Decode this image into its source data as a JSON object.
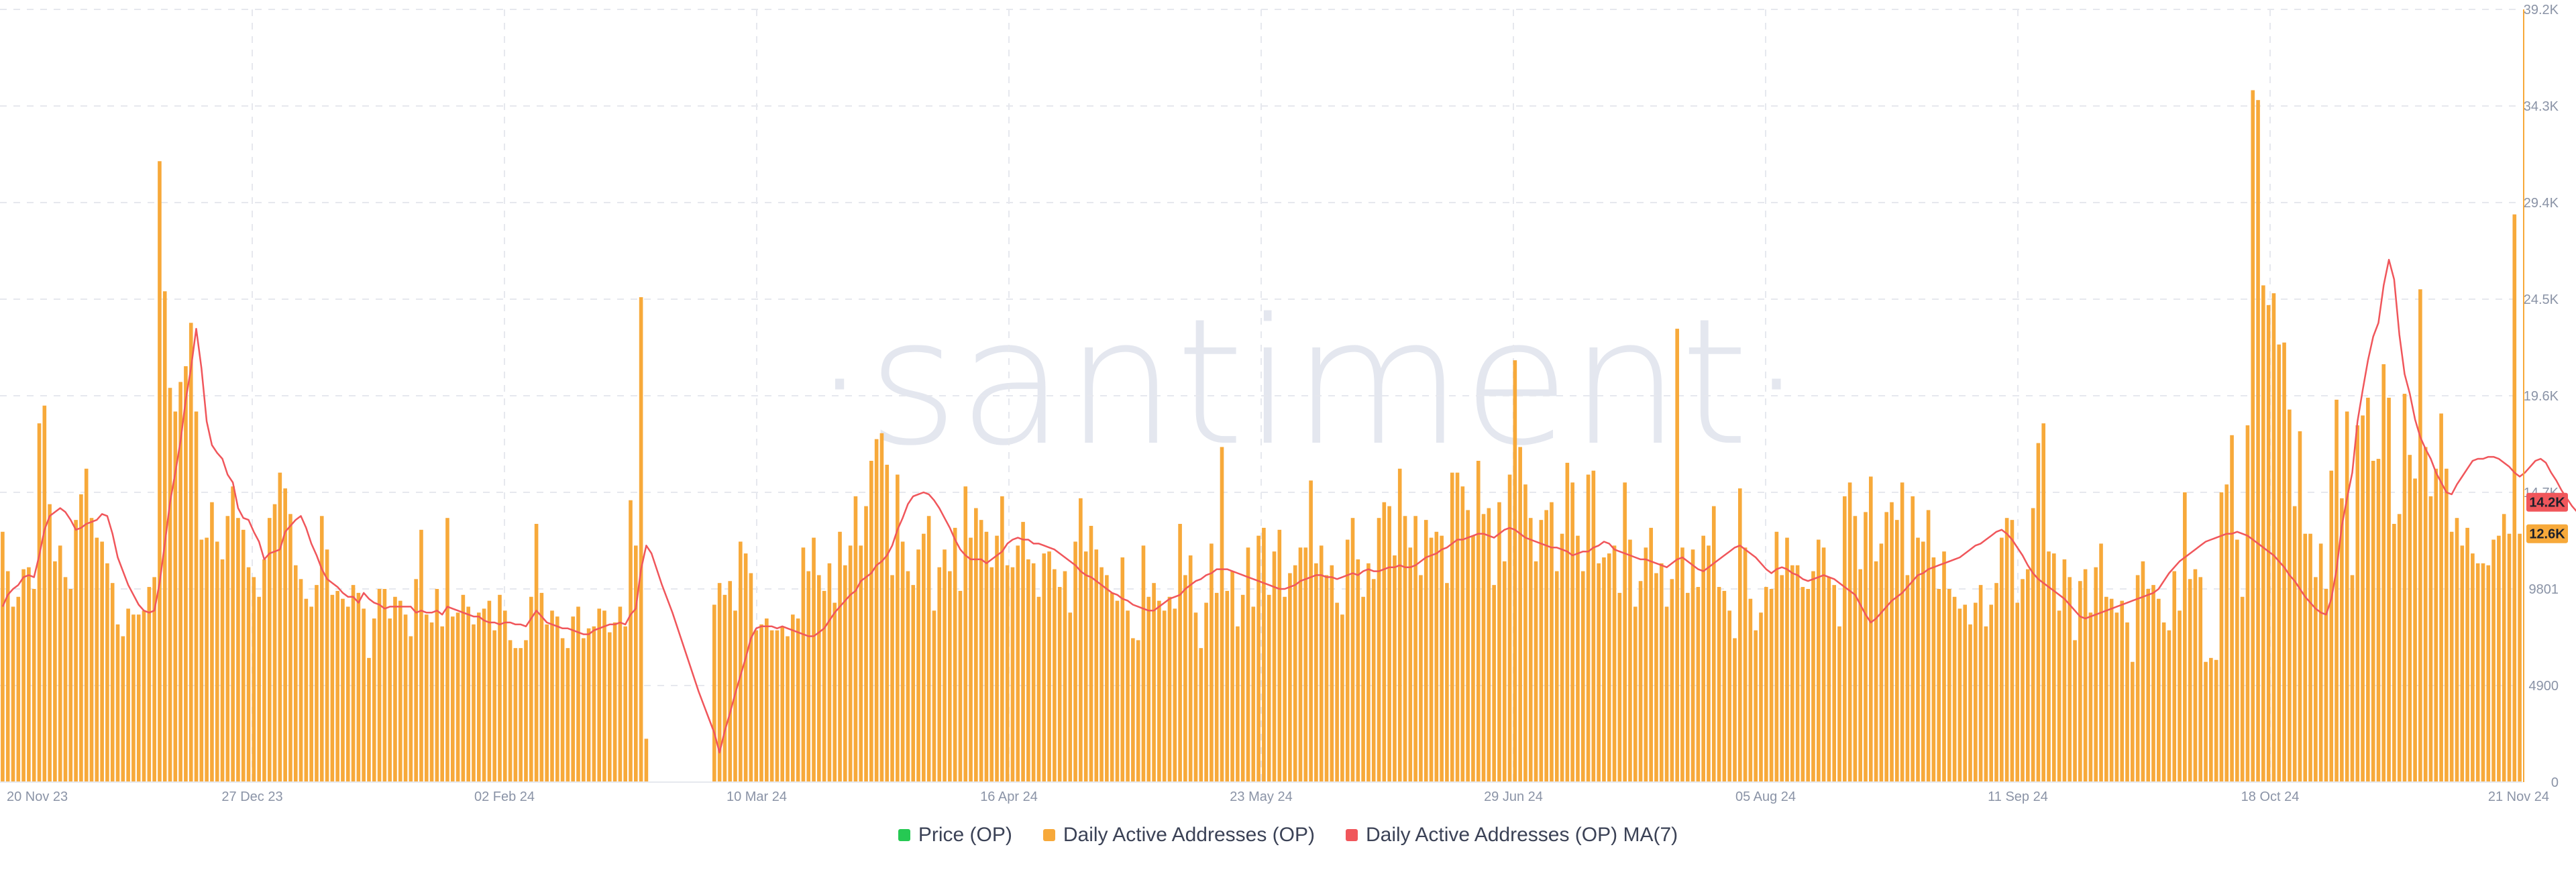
{
  "watermark": "·santiment·",
  "legend": [
    {
      "label": "Price (OP)",
      "color": "#26c953"
    },
    {
      "label": "Daily Active Addresses (OP)",
      "color": "#f7a93a"
    },
    {
      "label": "Daily Active Addresses (OP) MA(7)",
      "color": "#f0565b"
    }
  ],
  "chart_data": {
    "type": "bar",
    "x_start": "2023-11-20",
    "x_end": "2024-11-21",
    "x_tick_labels": [
      "20 Nov 23",
      "27 Dec 23",
      "02 Feb 24",
      "10 Mar 24",
      "16 Apr 24",
      "23 May 24",
      "29 Jun 24",
      "05 Aug 24",
      "11 Sep 24",
      "18 Oct 24",
      "21 Nov 24"
    ],
    "y_tick_labels": [
      "0",
      "4900",
      "9801",
      "14.7K",
      "19.6K",
      "24.5K",
      "29.4K",
      "34.3K",
      "39.2K"
    ],
    "ylim": [
      0,
      39200
    ],
    "grid": true,
    "legend_position": "bottom",
    "last_value_labels": [
      {
        "text": "14.2K",
        "value": 14200,
        "color": "#f0565b"
      },
      {
        "text": "12.6K",
        "value": 12600,
        "color": "#f7a93a"
      }
    ],
    "series": [
      {
        "name": "Daily Active Addresses (OP)",
        "color": "#f7a93a",
        "values": [
          12700,
          10700,
          8900,
          9400,
          10800,
          10900,
          9800,
          18200,
          19100,
          14100,
          11200,
          12000,
          10400,
          9800,
          13300,
          14600,
          15900,
          13400,
          12400,
          12200,
          11100,
          10100,
          8000,
          7400,
          8800,
          8500,
          8500,
          8700,
          9900,
          10400,
          31500,
          24900,
          20000,
          18800,
          20300,
          21100,
          23300,
          18800,
          12300,
          12400,
          14200,
          12200,
          11300,
          13500,
          15000,
          13400,
          12800,
          10900,
          10400,
          9400,
          11300,
          13400,
          14100,
          15700,
          14900,
          13600,
          11000,
          10300,
          9300,
          8900,
          10000,
          13500,
          11800,
          9500,
          9700,
          9300,
          8900,
          10000,
          9600,
          8800,
          6300,
          8300,
          9800,
          9800,
          8300,
          9400,
          9200,
          8500,
          7400,
          10300,
          12800,
          8500,
          8100,
          9800,
          7900,
          13400,
          8400,
          8600,
          9500,
          8900,
          8000,
          8600,
          8800,
          9200,
          7700,
          9500,
          8700,
          7200,
          6800,
          6800,
          7200,
          9400,
          13100,
          9600,
          8000,
          8700,
          8400,
          7300,
          6800,
          8400,
          8900,
          7300,
          7800,
          7900,
          8800,
          8700,
          7600,
          8100,
          8900,
          7900,
          14300,
          12000,
          24600,
          2200,
          0,
          0,
          0,
          0,
          0,
          0,
          0,
          0,
          0,
          0,
          0,
          0,
          9000,
          10100,
          9500,
          10200,
          8700,
          12200,
          11600,
          10600,
          7700,
          8000,
          8300,
          7700,
          7700,
          7900,
          7400,
          8500,
          8300,
          11900,
          10700,
          12400,
          10500,
          9700,
          11100,
          9100,
          12700,
          11000,
          12000,
          14500,
          12000,
          14000,
          16300,
          17400,
          17700,
          16100,
          10500,
          15600,
          12200,
          10700,
          10000,
          11800,
          12600,
          13500,
          8700,
          10900,
          11800,
          10700,
          12900,
          9700,
          15000,
          12400,
          13900,
          13300,
          12700,
          10900,
          12500,
          14500,
          11000,
          10900,
          12000,
          13200,
          11300,
          11100,
          9400,
          11600,
          11700,
          10800,
          9900,
          10700,
          8600,
          12200,
          14400,
          11700,
          13000,
          11800,
          10900,
          10500,
          9600,
          9200,
          11400,
          8700,
          7300,
          7200,
          12000,
          9400,
          10100,
          9200,
          8700,
          9400,
          8800,
          13100,
          10500,
          11500,
          8600,
          6800,
          9100,
          12100,
          9600,
          17000,
          9700,
          10700,
          7900,
          9500,
          11900,
          8900,
          12500,
          12900,
          9500,
          11700,
          12800,
          9400,
          10600,
          11000,
          11900,
          11900,
          15300,
          11100,
          12000,
          10500,
          11000,
          9100,
          8500,
          12300,
          13400,
          11300,
          9400,
          11100,
          10300,
          13400,
          14200,
          14000,
          11500,
          15900,
          13500,
          11900,
          13500,
          10500,
          13300,
          12400,
          12700,
          12500,
          10100,
          15700,
          15700,
          15000,
          13800,
          12500,
          16300,
          13600,
          13900,
          10000,
          14200,
          11200,
          15600,
          21400,
          17000,
          15100,
          13400,
          11200,
          13300,
          13800,
          14200,
          10700,
          12600,
          16200,
          15200,
          12500,
          10700,
          15600,
          15800,
          11100,
          11400,
          11600,
          12000,
          9600,
          15200,
          12300,
          8900,
          10200,
          11900,
          12900,
          10600,
          11100,
          8900,
          10300,
          23000,
          11900,
          9600,
          11800,
          9900,
          12500,
          12000,
          14000,
          9900,
          9700,
          8700,
          7300,
          14900,
          11900,
          9300,
          7700,
          8600,
          9900,
          9800,
          12700,
          10500,
          12400,
          11000,
          11000,
          9900,
          9800,
          10700,
          12300,
          11900,
          10400,
          10000,
          7900,
          14500,
          15200,
          13500,
          10800,
          13700,
          15500,
          11200,
          12100,
          13700,
          14200,
          13300,
          15200,
          10500,
          14500,
          12400,
          12200,
          13800,
          11400,
          9800,
          11700,
          9800,
          9400,
          8800,
          9000,
          8000,
          9100,
          10000,
          7900,
          9000,
          10100,
          12400,
          13400,
          13300,
          9100,
          10300,
          10800,
          13900,
          17200,
          18200,
          11700,
          11600,
          8700,
          11300,
          10400,
          7200,
          10200,
          10800,
          8600,
          10900,
          12100,
          9400,
          9300,
          8600,
          9200,
          8100,
          6100,
          10500,
          11200,
          9800,
          10000,
          9300,
          8100,
          7700,
          10700,
          8700,
          14700,
          10300,
          10800,
          10400,
          6100,
          6300,
          6200,
          14700,
          15100,
          17600,
          12300,
          9400,
          18100,
          35100,
          34600,
          25200,
          24200,
          24800,
          22200,
          22300,
          18900,
          14000,
          17800,
          12600,
          12600,
          10400,
          12100,
          9800,
          15800,
          19400,
          14400,
          18800,
          10500,
          18100,
          18600,
          19500,
          16300,
          16400,
          21200,
          19500,
          13100,
          13600,
          19700,
          16600,
          15400,
          25000,
          17000,
          14500,
          15900,
          18700,
          15900,
          12700,
          13400,
          12000,
          12900,
          11600,
          11100,
          11100,
          11000,
          12300,
          12500,
          13600,
          12600,
          28800,
          12600
        ]
      },
      {
        "name": "Daily Active Addresses (OP) MA(7)",
        "color": "#f0565b",
        "values": [
          8900,
          9500,
          9800,
          10000,
          10400,
          10500,
          10400,
          11500,
          12800,
          13500,
          13700,
          13900,
          13700,
          13300,
          12800,
          12900,
          13100,
          13200,
          13300,
          13600,
          13500,
          12600,
          11400,
          10700,
          10000,
          9500,
          9000,
          8700,
          8600,
          8700,
          10100,
          12100,
          14200,
          15700,
          17300,
          19400,
          21000,
          23000,
          21000,
          18300,
          17100,
          16700,
          16400,
          15600,
          15200,
          13900,
          13400,
          13300,
          12700,
          12200,
          11300,
          11600,
          11700,
          11800,
          12700,
          13000,
          13300,
          13500,
          12900,
          12100,
          11500,
          10800,
          10300,
          10100,
          9900,
          9600,
          9400,
          9400,
          9100,
          9600,
          9300,
          9100,
          9000,
          8800,
          8900,
          8900,
          8900,
          8900,
          8900,
          8600,
          8700,
          8600,
          8600,
          8700,
          8500,
          8900,
          8800,
          8700,
          8600,
          8500,
          8400,
          8400,
          8200,
          8100,
          8100,
          8000,
          8100,
          8100,
          8000,
          8000,
          7900,
          8300,
          8700,
          8400,
          8100,
          8000,
          7900,
          7800,
          7800,
          7700,
          7600,
          7500,
          7500,
          7700,
          7800,
          7900,
          8000,
          8000,
          8100,
          8000,
          8500,
          8800,
          10800,
          12000,
          11600,
          10800,
          10000,
          9300,
          8600,
          7800,
          7000,
          6200,
          5400,
          4600,
          3900,
          3200,
          2500,
          1500,
          2600,
          3500,
          4500,
          5400,
          6300,
          7300,
          7800,
          7900,
          7900,
          7900,
          7800,
          7900,
          7800,
          7700,
          7600,
          7500,
          7400,
          7400,
          7600,
          7800,
          8200,
          8600,
          8900,
          9200,
          9500,
          9700,
          10200,
          10400,
          10600,
          11000,
          11200,
          11500,
          12000,
          12800,
          13400,
          14100,
          14500,
          14600,
          14700,
          14600,
          14300,
          13900,
          13400,
          12900,
          12300,
          11800,
          11500,
          11300,
          11300,
          11300,
          11100,
          11300,
          11500,
          11700,
          12100,
          12300,
          12400,
          12300,
          12300,
          12100,
          12100,
          12000,
          11900,
          11800,
          11600,
          11400,
          11200,
          11000,
          10700,
          10500,
          10400,
          10200,
          10000,
          9800,
          9600,
          9500,
          9300,
          9200,
          9000,
          8900,
          8800,
          8700,
          8700,
          8900,
          9100,
          9300,
          9400,
          9500,
          9800,
          10000,
          10200,
          10300,
          10500,
          10600,
          10800,
          10800,
          10800,
          10700,
          10600,
          10500,
          10400,
          10300,
          10200,
          10100,
          10000,
          9900,
          9800,
          9800,
          9900,
          10000,
          10200,
          10300,
          10400,
          10500,
          10500,
          10400,
          10400,
          10300,
          10400,
          10500,
          10600,
          10500,
          10700,
          10800,
          10700,
          10700,
          10800,
          10900,
          10900,
          11000,
          10900,
          10900,
          11000,
          11200,
          11400,
          11500,
          11600,
          11800,
          11900,
          12100,
          12300,
          12300,
          12400,
          12500,
          12600,
          12600,
          12500,
          12400,
          12600,
          12800,
          12900,
          12800,
          12600,
          12400,
          12300,
          12200,
          12100,
          12000,
          11900,
          11900,
          11800,
          11700,
          11500,
          11600,
          11700,
          11700,
          11900,
          12000,
          12200,
          12100,
          11800,
          11700,
          11600,
          11500,
          11400,
          11300,
          11300,
          11200,
          11100,
          11000,
          10900,
          11100,
          11300,
          11400,
          11200,
          11000,
          10800,
          10700,
          10900,
          11100,
          11300,
          11500,
          11700,
          11900,
          12000,
          11800,
          11600,
          11400,
          11100,
          10800,
          10600,
          10800,
          10900,
          10800,
          10600,
          10500,
          10300,
          10200,
          10300,
          10400,
          10500,
          10400,
          10300,
          10100,
          9900,
          9700,
          9500,
          9000,
          8500,
          8100,
          8300,
          8600,
          8900,
          9200,
          9400,
          9600,
          9900,
          10200,
          10500,
          10600,
          10800,
          10900,
          11000,
          11100,
          11200,
          11300,
          11400,
          11600,
          11800,
          12000,
          12100,
          12300,
          12500,
          12700,
          12800,
          12600,
          12300,
          11900,
          11500,
          11000,
          10600,
          10300,
          10100,
          9900,
          9700,
          9500,
          9300,
          9000,
          8700,
          8400,
          8300,
          8400,
          8500,
          8600,
          8700,
          8800,
          8900,
          9000,
          9100,
          9200,
          9300,
          9400,
          9500,
          9600,
          9800,
          10200,
          10600,
          10900,
          11200,
          11400,
          11600,
          11800,
          12000,
          12200,
          12300,
          12400,
          12500,
          12600,
          12600,
          12700,
          12600,
          12500,
          12300,
          12100,
          11900,
          11700,
          11500,
          11200,
          10900,
          10500,
          10200,
          9800,
          9400,
          9100,
          8800,
          8600,
          8500,
          9300,
          10800,
          13000,
          14400,
          15700,
          18300,
          19900,
          21400,
          22600,
          23300,
          25200,
          26500,
          25500,
          22700,
          20700,
          19700,
          18400,
          17500,
          16900,
          16400,
          15700,
          15200,
          14700,
          14600,
          15100,
          15500,
          15900,
          16300,
          16400,
          16400,
          16500,
          16500,
          16400,
          16200,
          16000,
          15700,
          15500,
          15700,
          16000,
          16300,
          16400,
          16200,
          15700,
          15300,
          14800,
          14400,
          14000,
          13700,
          13500,
          13200,
          12800,
          12600,
          12400,
          12200,
          12500,
          12900,
          14200,
          14200
        ]
      }
    ]
  }
}
